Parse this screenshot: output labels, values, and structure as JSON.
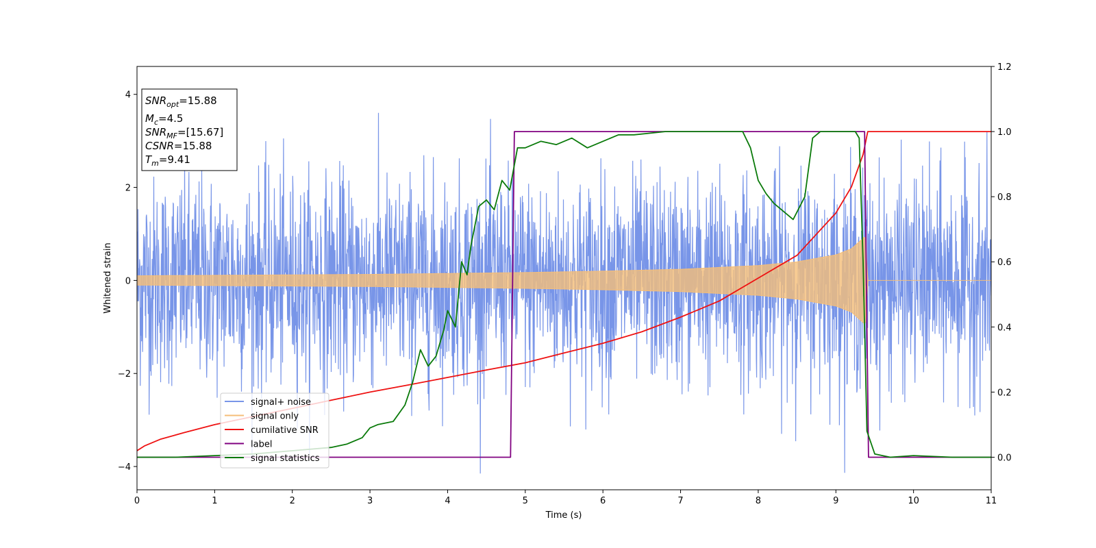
{
  "chart_data": {
    "type": "line",
    "title": "",
    "xlabel": "Time (s)",
    "ylabel": "Whitened strain",
    "xlim": [
      0,
      11
    ],
    "ylim": [
      -4.5,
      4.6
    ],
    "y2lim": [
      -0.1,
      1.2
    ],
    "xticks": [
      0,
      1,
      2,
      3,
      4,
      5,
      6,
      7,
      8,
      9,
      10,
      11
    ],
    "yticks": [
      -4,
      -2,
      0,
      2,
      4
    ],
    "y2ticks": [
      "0.0",
      "0.2",
      "0.4",
      "0.6",
      "0.8",
      "1.0",
      "1.2"
    ],
    "grid": false,
    "legend_position": "lower-left",
    "info_box": {
      "snr_opt": {
        "base": "SNR",
        "sub": "opt",
        "value": "=15.88"
      },
      "mc": {
        "base": "M",
        "sub": "c",
        "value": "=4.5"
      },
      "snr_mf": {
        "base": "SNR",
        "sub": "MF",
        "value": "=[15.67]"
      },
      "csnr": {
        "base": "CSNR",
        "value": "=15.88"
      },
      "tm": {
        "base": "T",
        "sub": "m",
        "value": "=9.41"
      }
    },
    "series": [
      {
        "name": "signal+ noise",
        "color": "#7895e8",
        "axis": "left",
        "kind": "noise",
        "noise_std": 1.1,
        "noise_peak": 4.15
      },
      {
        "name": "signal only",
        "color": "#f5be78",
        "axis": "left",
        "kind": "chirp",
        "envelope": {
          "x": [
            0,
            1,
            2,
            3,
            4,
            5,
            6,
            7,
            8,
            8.5,
            9,
            9.2,
            9.38,
            9.41,
            11
          ],
          "y": [
            0.1,
            0.11,
            0.12,
            0.13,
            0.15,
            0.17,
            0.2,
            0.24,
            0.32,
            0.4,
            0.55,
            0.68,
            0.95,
            0,
            0
          ]
        }
      },
      {
        "name": "cumilative SNR",
        "color": "#ee1111",
        "axis": "right",
        "x": [
          0,
          0.1,
          0.3,
          0.6,
          1,
          1.5,
          2,
          2.5,
          3,
          3.5,
          4,
          4.5,
          5,
          5.5,
          6,
          6.5,
          7,
          7.5,
          8,
          8.5,
          9,
          9.2,
          9.35,
          9.41,
          11
        ],
        "y": [
          0.02,
          0.035,
          0.055,
          0.075,
          0.1,
          0.125,
          0.15,
          0.175,
          0.2,
          0.222,
          0.245,
          0.268,
          0.29,
          0.32,
          0.35,
          0.385,
          0.43,
          0.48,
          0.55,
          0.62,
          0.75,
          0.83,
          0.93,
          1.0,
          1.0
        ]
      },
      {
        "name": "label",
        "color": "#800080",
        "axis": "right",
        "x": [
          0,
          4.81,
          4.86,
          9.37,
          9.42,
          11
        ],
        "y": [
          0,
          0,
          1,
          1,
          0,
          0
        ]
      },
      {
        "name": "signal statistics",
        "color": "#0a7a0a",
        "axis": "right",
        "x": [
          0,
          0.5,
          1,
          1.5,
          2,
          2.5,
          2.7,
          2.9,
          3.0,
          3.1,
          3.3,
          3.45,
          3.55,
          3.65,
          3.75,
          3.85,
          3.95,
          4.0,
          4.1,
          4.18,
          4.25,
          4.3,
          4.4,
          4.5,
          4.6,
          4.7,
          4.8,
          4.9,
          5.0,
          5.2,
          5.4,
          5.6,
          5.8,
          6.0,
          6.2,
          6.4,
          6.6,
          6.8,
          7.0,
          7.2,
          7.5,
          7.8,
          7.9,
          8.0,
          8.1,
          8.2,
          8.3,
          8.45,
          8.6,
          8.7,
          8.8,
          9.0,
          9.25,
          9.3,
          9.35,
          9.4,
          9.5,
          9.7,
          10,
          10.5,
          11
        ],
        "y": [
          0.0,
          0.0,
          0.005,
          0.01,
          0.02,
          0.03,
          0.04,
          0.06,
          0.09,
          0.1,
          0.11,
          0.16,
          0.23,
          0.33,
          0.28,
          0.31,
          0.39,
          0.45,
          0.4,
          0.6,
          0.56,
          0.65,
          0.77,
          0.79,
          0.76,
          0.85,
          0.82,
          0.95,
          0.95,
          0.97,
          0.96,
          0.98,
          0.95,
          0.97,
          0.99,
          0.99,
          0.995,
          1.0,
          1.0,
          1.0,
          1.0,
          1.0,
          0.95,
          0.85,
          0.81,
          0.78,
          0.76,
          0.73,
          0.8,
          0.98,
          1.0,
          1.0,
          1.0,
          0.98,
          0.6,
          0.08,
          0.01,
          0.0,
          0.005,
          0.0,
          0.0
        ]
      }
    ]
  }
}
